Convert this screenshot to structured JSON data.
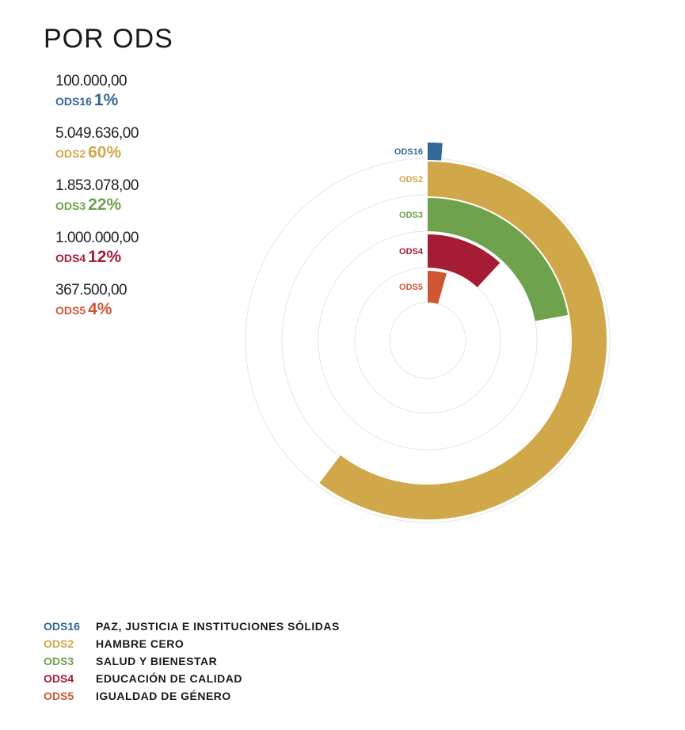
{
  "title": "POR ODS",
  "items": [
    {
      "code": "ODS16",
      "amount": "100.000,00",
      "percent": "1%",
      "color": "#336699",
      "name": "PAZ, JUSTICIA E INSTITUCIONES SÓLIDAS"
    },
    {
      "code": "ODS2",
      "amount": "5.049.636,00",
      "percent": "60%",
      "color": "#D0A84A",
      "name": "HAMBRE CERO"
    },
    {
      "code": "ODS3",
      "amount": "1.853.078,00",
      "percent": "22%",
      "color": "#6EA24C",
      "name": "SALUD Y BIENESTAR"
    },
    {
      "code": "ODS4",
      "amount": "1.000.000,00",
      "percent": "12%",
      "color": "#A61C34",
      "name": "EDUCACIÓN DE CALIDAD"
    },
    {
      "code": "ODS5",
      "amount": "367.500,00",
      "percent": "4%",
      "color": "#CF5633",
      "name": "IGUALDAD DE GÉNERO"
    }
  ],
  "chart_data": {
    "type": "radial-bar",
    "categories": [
      "ODS16",
      "ODS2",
      "ODS3",
      "ODS4",
      "ODS5"
    ],
    "values": [
      100000,
      5049636,
      1853078,
      1000000,
      367500
    ],
    "percentages": [
      1,
      60,
      22,
      12,
      4
    ],
    "colors": [
      "#336699",
      "#D0A84A",
      "#6EA24C",
      "#A61C34",
      "#CF5633"
    ],
    "grid": true
  }
}
